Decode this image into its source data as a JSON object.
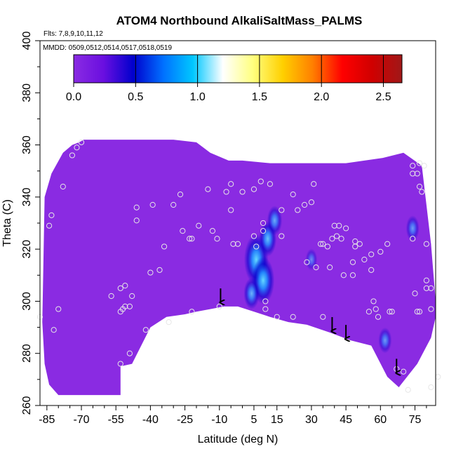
{
  "chart_data": {
    "type": "heatmap",
    "title": "ATOM4 Northbound AlkaliSaltMass_PALMS",
    "flights_label": "Flts: 7,8,9,10,11,12",
    "mmdd_label": "MMDD: 0509,0512,0514,0517,0518,0519",
    "xlabel": "Latitude (deg N)",
    "ylabel": "Theta (C)",
    "xlim": [
      -88,
      84
    ],
    "ylim": [
      260,
      400
    ],
    "x_ticks": [
      -85,
      -70,
      -55,
      -40,
      -25,
      -10,
      5,
      15,
      30,
      45,
      60,
      75
    ],
    "y_ticks": [
      260,
      280,
      300,
      320,
      340,
      360,
      380,
      400
    ],
    "colorbar": {
      "range": [
        0,
        2.65
      ],
      "ticks": [
        0.0,
        0.5,
        1.0,
        1.5,
        2.0,
        2.5
      ],
      "tick_labels": [
        "0.0",
        "0.5",
        "1.0",
        "1.5",
        "2.0",
        "2.5"
      ],
      "colors": [
        "#8a2be2",
        "#6a0fe0",
        "#0000cd",
        "#0070ff",
        "#00c8ff",
        "#ffffff",
        "#ffff80",
        "#ffd000",
        "#ff8000",
        "#ff0000",
        "#d00000",
        "#a01818"
      ]
    },
    "background_color": "#8a2be2",
    "field_upper_boundary": [
      [
        -86,
        340
      ],
      [
        -83,
        349
      ],
      [
        -78,
        357
      ],
      [
        -74,
        360
      ],
      [
        -71,
        361
      ],
      [
        -69,
        362
      ],
      [
        -62,
        362
      ],
      [
        -46,
        362
      ],
      [
        -30,
        362
      ],
      [
        -20,
        361
      ],
      [
        -14,
        357
      ],
      [
        -6,
        354
      ],
      [
        0,
        354
      ],
      [
        12,
        353
      ],
      [
        30,
        353
      ],
      [
        45,
        353
      ],
      [
        61,
        355
      ],
      [
        70,
        357
      ],
      [
        78,
        352
      ],
      [
        82,
        322
      ],
      [
        84,
        300
      ]
    ],
    "field_lower_boundary": [
      [
        84,
        294
      ],
      [
        82,
        286
      ],
      [
        76,
        276
      ],
      [
        68,
        267
      ],
      [
        63,
        271
      ],
      [
        56,
        283
      ],
      [
        47,
        285
      ],
      [
        38,
        288
      ],
      [
        28,
        291
      ],
      [
        20,
        292
      ],
      [
        12,
        294
      ],
      [
        5,
        296
      ],
      [
        -2,
        298
      ],
      [
        -8,
        298
      ],
      [
        -14,
        297
      ],
      [
        -20,
        296
      ],
      [
        -25,
        295
      ],
      [
        -33,
        294
      ],
      [
        -40,
        290
      ],
      [
        -44,
        283
      ],
      [
        -48,
        276
      ],
      [
        -53,
        275
      ],
      [
        -53,
        264
      ],
      [
        -58,
        264
      ],
      [
        -75,
        264
      ],
      [
        -80,
        264
      ],
      [
        -84,
        268
      ],
      [
        -86,
        276
      ],
      [
        -87,
        292
      ]
    ],
    "hotspots": [
      {
        "lat": 6,
        "theta": 316,
        "value": 0.95
      },
      {
        "lat": 9,
        "theta": 308,
        "value": 0.85
      },
      {
        "lat": 11,
        "theta": 324,
        "value": 0.55
      },
      {
        "lat": 4,
        "theta": 303,
        "value": 0.45
      },
      {
        "lat": 14,
        "theta": 331,
        "value": 0.4
      },
      {
        "lat": 62,
        "theta": 285,
        "value": 0.3
      },
      {
        "lat": 74,
        "theta": 328,
        "value": 0.3
      },
      {
        "lat": 30,
        "theta": 316,
        "value": 0.2
      }
    ],
    "arrows": [
      {
        "lat": -9.5,
        "theta": 299
      },
      {
        "lat": 39,
        "theta": 288
      },
      {
        "lat": 45,
        "theta": 285
      },
      {
        "lat": 67,
        "theta": 272
      }
    ],
    "samples": [
      [
        -88,
        294
      ],
      [
        -84,
        329
      ],
      [
        -83,
        333
      ],
      [
        -80,
        297
      ],
      [
        -82,
        289
      ],
      [
        -78,
        344
      ],
      [
        -74,
        356
      ],
      [
        -72,
        359
      ],
      [
        -70,
        361
      ],
      [
        -57,
        302
      ],
      [
        -53,
        305
      ],
      [
        -51,
        306
      ],
      [
        -53,
        296
      ],
      [
        -51,
        298
      ],
      [
        -52,
        297
      ],
      [
        -49,
        298
      ],
      [
        -48,
        302
      ],
      [
        -49,
        280
      ],
      [
        -53,
        276
      ],
      [
        -46,
        331
      ],
      [
        -46,
        336
      ],
      [
        -42,
        289
      ],
      [
        -40,
        311
      ],
      [
        -39,
        337
      ],
      [
        -36,
        312
      ],
      [
        -34,
        321
      ],
      [
        -32,
        292
      ],
      [
        -30,
        337
      ],
      [
        -26,
        327
      ],
      [
        -27,
        341
      ],
      [
        -23,
        324
      ],
      [
        -22,
        296
      ],
      [
        -22,
        324
      ],
      [
        -19,
        329
      ],
      [
        -15,
        343
      ],
      [
        -13,
        327
      ],
      [
        -11,
        324
      ],
      [
        -10,
        298
      ],
      [
        -7,
        342
      ],
      [
        -5,
        345
      ],
      [
        -5,
        335
      ],
      [
        -4,
        322
      ],
      [
        -2,
        322
      ],
      [
        0,
        342
      ],
      [
        5,
        325
      ],
      [
        5,
        343
      ],
      [
        6,
        321
      ],
      [
        8,
        346
      ],
      [
        9,
        327
      ],
      [
        9,
        330
      ],
      [
        10,
        297
      ],
      [
        10,
        300
      ],
      [
        12,
        345
      ],
      [
        15,
        294
      ],
      [
        17,
        335
      ],
      [
        17,
        325
      ],
      [
        22,
        294
      ],
      [
        22,
        341
      ],
      [
        24,
        335
      ],
      [
        27,
        337
      ],
      [
        28,
        315
      ],
      [
        30,
        338
      ],
      [
        31,
        345
      ],
      [
        32,
        313
      ],
      [
        34,
        322
      ],
      [
        35,
        322
      ],
      [
        35,
        294
      ],
      [
        37,
        321
      ],
      [
        38,
        313
      ],
      [
        39,
        324
      ],
      [
        40,
        329
      ],
      [
        41,
        325
      ],
      [
        42,
        329
      ],
      [
        43,
        324
      ],
      [
        44,
        310
      ],
      [
        45,
        328
      ],
      [
        48,
        310
      ],
      [
        48,
        315
      ],
      [
        49,
        323
      ],
      [
        49,
        321
      ],
      [
        51,
        322
      ],
      [
        53,
        316
      ],
      [
        55,
        296
      ],
      [
        56,
        312
      ],
      [
        56,
        318
      ],
      [
        57,
        300
      ],
      [
        58,
        297
      ],
      [
        59,
        294
      ],
      [
        60,
        319
      ],
      [
        63,
        322
      ],
      [
        64,
        296
      ],
      [
        65,
        296
      ],
      [
        67,
        274
      ],
      [
        70,
        273
      ],
      [
        72,
        266
      ],
      [
        74,
        324
      ],
      [
        75,
        303
      ],
      [
        76,
        296
      ],
      [
        77,
        296
      ],
      [
        78,
        342
      ],
      [
        80,
        322
      ],
      [
        80,
        308
      ],
      [
        80,
        305
      ],
      [
        82,
        297
      ],
      [
        82,
        305
      ],
      [
        82,
        267
      ],
      [
        85,
        271
      ],
      [
        79,
        352
      ],
      [
        77,
        344
      ],
      [
        76,
        349
      ],
      [
        77,
        353
      ],
      [
        74,
        349
      ],
      [
        74,
        352
      ]
    ]
  }
}
